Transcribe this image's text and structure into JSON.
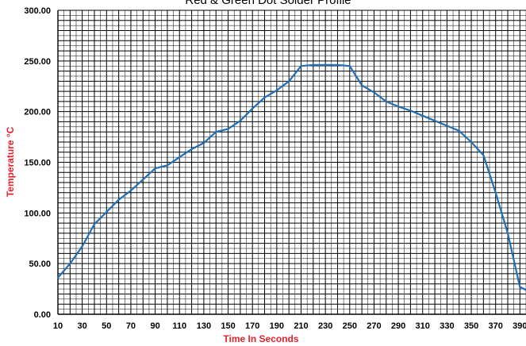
{
  "chart_data": {
    "type": "line",
    "title": "Red & Green Dot Solder Profile",
    "xlabel": "Time In Seconds",
    "ylabel": "Temperature °C",
    "xlim": [
      10,
      395
    ],
    "ylim": [
      0,
      300
    ],
    "x_ticks": [
      "10",
      "30",
      "50",
      "70",
      "90",
      "110",
      "130",
      "150",
      "170",
      "190",
      "210",
      "230",
      "250",
      "270",
      "290",
      "310",
      "330",
      "350",
      "370",
      "390"
    ],
    "x_tick_values": [
      10,
      30,
      50,
      70,
      90,
      110,
      130,
      150,
      170,
      190,
      210,
      230,
      250,
      270,
      290,
      310,
      330,
      350,
      370,
      390
    ],
    "x_extra_ticks": [
      "20",
      "40",
      "60",
      "80",
      "100",
      "120",
      "140",
      "160",
      "180",
      "200",
      "220",
      "240",
      "260",
      "280",
      "300",
      "320",
      "340",
      "360",
      "380"
    ],
    "x_extra_tick_values": [
      20,
      40,
      60,
      80,
      100,
      120,
      140,
      160,
      180,
      200,
      220,
      240,
      260,
      280,
      300,
      320,
      340,
      360,
      380
    ],
    "y_ticks": [
      "0.00",
      "50.00",
      "100.00",
      "150.00",
      "200.00",
      "250.00",
      "300.00"
    ],
    "y_tick_values": [
      0,
      50,
      100,
      150,
      200,
      250,
      300
    ],
    "grid": true,
    "series": [
      {
        "color": "#1f6fb4",
        "x": [
          10,
          20,
          30,
          40,
          50,
          60,
          70,
          80,
          90,
          100,
          110,
          120,
          130,
          140,
          150,
          160,
          170,
          180,
          190,
          200,
          210,
          220,
          230,
          240,
          250,
          260,
          270,
          280,
          290,
          300,
          310,
          320,
          330,
          340,
          350,
          360,
          370,
          380,
          390,
          395
        ],
        "y": [
          36,
          50,
          67,
          89,
          101,
          113,
          122,
          133,
          144,
          147,
          155,
          163,
          169,
          180,
          183,
          191,
          203,
          214,
          221,
          230,
          245,
          246,
          246,
          246,
          245,
          226,
          219,
          210,
          205,
          201,
          196,
          191,
          186,
          181,
          170,
          157,
          120,
          80,
          27,
          24
        ]
      }
    ]
  }
}
